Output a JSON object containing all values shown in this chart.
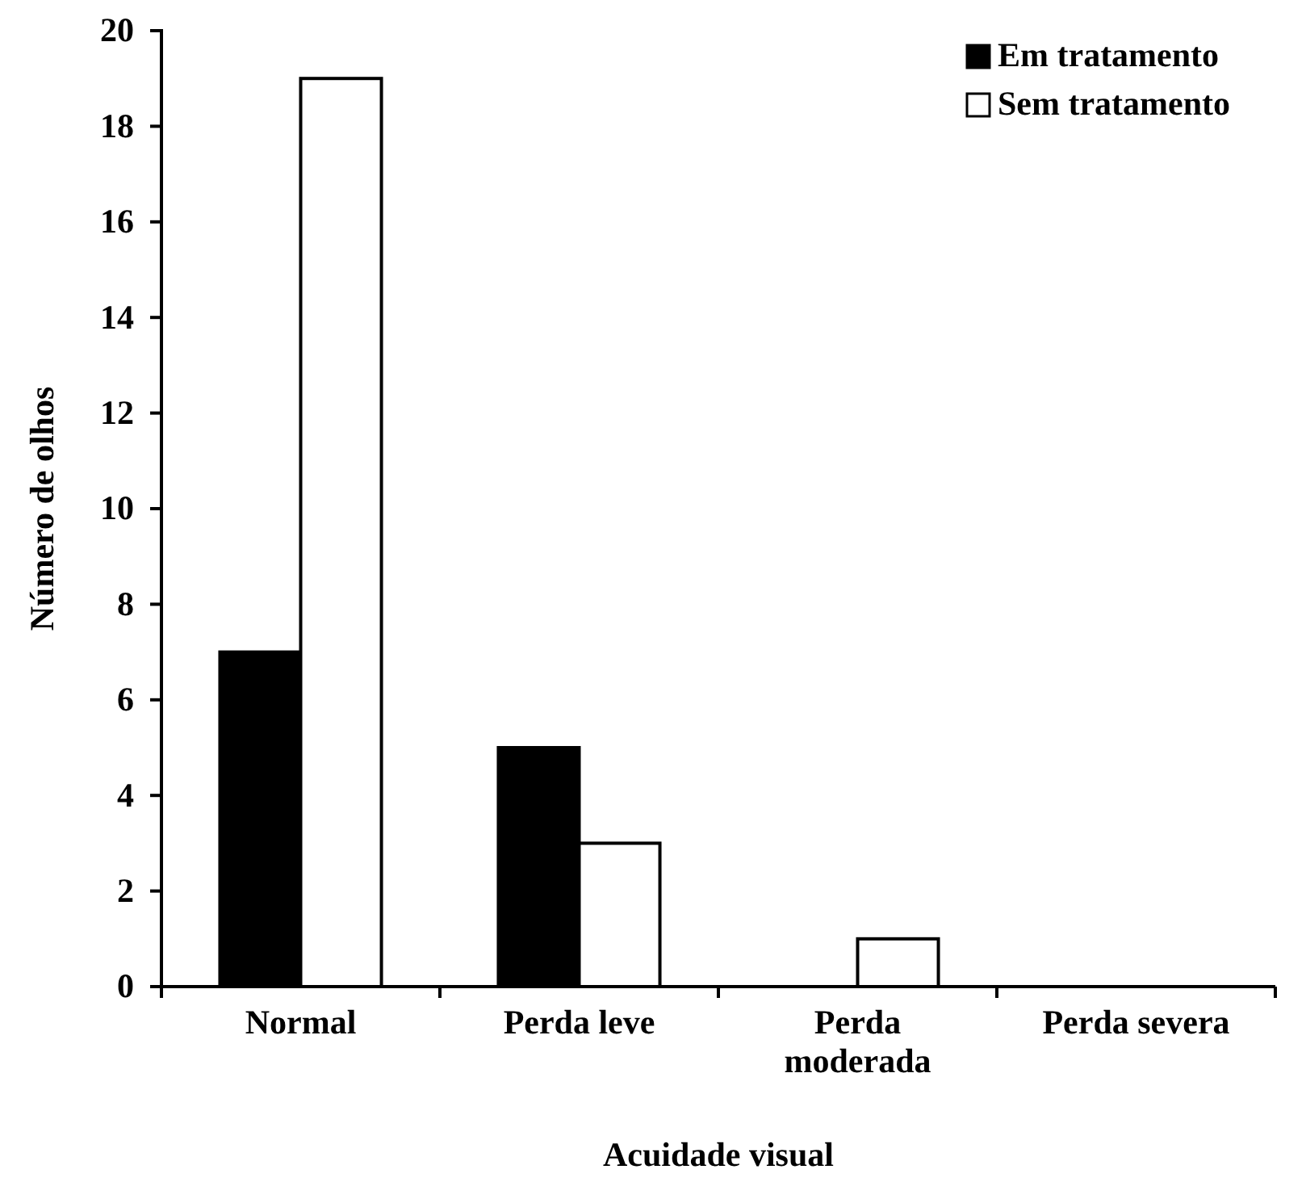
{
  "chart_data": {
    "type": "bar",
    "xlabel": "Acuidade visual",
    "ylabel": "Número de olhos",
    "categories": [
      "Normal",
      "Perda leve",
      "Perda moderada",
      "Perda severa"
    ],
    "series": [
      {
        "name": "Em tratamento",
        "color": "#000000",
        "values": [
          7,
          5,
          0,
          0
        ]
      },
      {
        "name": "Sem tratamento",
        "color": "#ffffff",
        "values": [
          19,
          3,
          1,
          0
        ]
      }
    ],
    "ylim": [
      0,
      20
    ],
    "yticks": [
      0,
      2,
      4,
      6,
      8,
      10,
      12,
      14,
      16,
      18,
      20
    ],
    "grid": false,
    "legend": "top right"
  }
}
